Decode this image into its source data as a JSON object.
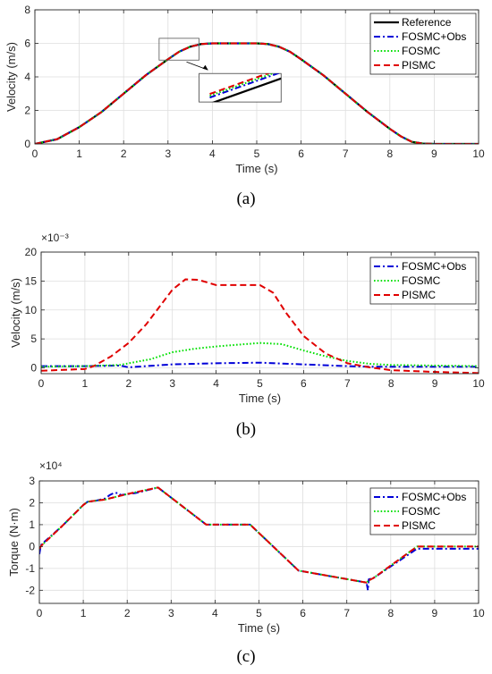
{
  "colors": {
    "reference": "#000000",
    "obs": "#0000d8",
    "fosmc": "#00e000",
    "pismc": "#e00000",
    "grid": "#dedede",
    "axis": "#262626"
  },
  "chart_data": [
    {
      "id": "a",
      "type": "line",
      "caption": "(a)",
      "xlabel": "Time (s)",
      "ylabel": "Velocity (m/s)",
      "xlim": [
        0,
        10
      ],
      "ylim": [
        0,
        8
      ],
      "xticks": [
        "0",
        "1",
        "2",
        "3",
        "4",
        "5",
        "6",
        "7",
        "8",
        "9",
        "10"
      ],
      "yticks": [
        "0",
        "2",
        "4",
        "6",
        "8"
      ],
      "multiplier": "",
      "grid": true,
      "legend_position": "top-right",
      "series": [
        {
          "name": "Reference",
          "style": "solid",
          "color": "#000000",
          "x": [
            0,
            0.5,
            1,
            1.5,
            2,
            2.5,
            3,
            3.25,
            3.5,
            3.75,
            4,
            4.5,
            5,
            5.25,
            5.5,
            5.75,
            6,
            6.5,
            7,
            7.5,
            8,
            8.25,
            8.5,
            8.75,
            9,
            10
          ],
          "y": [
            0,
            0.28,
            1,
            1.9,
            3,
            4.1,
            5.05,
            5.5,
            5.8,
            5.96,
            6,
            6,
            6,
            5.96,
            5.8,
            5.5,
            5.05,
            4.1,
            3,
            1.9,
            0.9,
            0.45,
            0.12,
            0.02,
            0,
            0
          ]
        },
        {
          "name": "FOSMC+Obs",
          "style": "dashdot",
          "color": "#0000d8",
          "x": [
            0,
            0.5,
            1,
            1.5,
            2,
            2.5,
            3,
            3.25,
            3.5,
            3.75,
            4,
            4.5,
            5,
            5.25,
            5.5,
            5.75,
            6,
            6.5,
            7,
            7.5,
            8,
            8.25,
            8.5,
            8.75,
            9,
            10
          ],
          "y": [
            0,
            0.28,
            1,
            1.9,
            3,
            4.1,
            5.05,
            5.5,
            5.8,
            5.96,
            6,
            6,
            6,
            5.96,
            5.8,
            5.5,
            5.05,
            4.1,
            3,
            1.9,
            0.9,
            0.45,
            0.12,
            0.02,
            0,
            0
          ]
        },
        {
          "name": "FOSMC",
          "style": "dotted",
          "color": "#00e000",
          "x": [
            0,
            0.5,
            1,
            1.5,
            2,
            2.5,
            3,
            3.25,
            3.5,
            3.75,
            4,
            4.5,
            5,
            5.25,
            5.5,
            5.75,
            6,
            6.5,
            7,
            7.5,
            8,
            8.25,
            8.5,
            8.75,
            9,
            10
          ],
          "y": [
            0,
            0.28,
            1,
            1.9,
            3,
            4.1,
            5.05,
            5.5,
            5.8,
            5.96,
            6,
            6,
            6,
            5.96,
            5.8,
            5.5,
            5.05,
            4.1,
            3,
            1.9,
            0.9,
            0.45,
            0.12,
            0.02,
            0,
            0
          ]
        },
        {
          "name": "PISMC",
          "style": "dashed",
          "color": "#e00000",
          "x": [
            0,
            0.5,
            1,
            1.5,
            2,
            2.5,
            3,
            3.25,
            3.5,
            3.75,
            4,
            4.5,
            5,
            5.25,
            5.5,
            5.75,
            6,
            6.5,
            7,
            7.5,
            8,
            8.25,
            8.5,
            8.75,
            9,
            10
          ],
          "y": [
            0,
            0.28,
            1,
            1.9,
            3,
            4.1,
            5.05,
            5.5,
            5.8,
            5.96,
            6,
            6,
            6,
            5.96,
            5.8,
            5.5,
            5.05,
            4.1,
            3,
            1.9,
            0.9,
            0.45,
            0.12,
            0.02,
            0,
            0
          ]
        }
      ],
      "inset": {
        "zoom_x": [
          2.8,
          3.7
        ],
        "zoom_y": [
          5.0,
          6.3
        ],
        "inset_x": [
          3.7,
          5.55
        ],
        "inset_y": [
          2.5,
          4.2
        ]
      }
    },
    {
      "id": "b",
      "type": "line",
      "caption": "(b)",
      "xlabel": "Time (s)",
      "ylabel": "Velocity (m/s)",
      "xlim": [
        0,
        10
      ],
      "ylim": [
        -1,
        20
      ],
      "xticks": [
        "0",
        "1",
        "2",
        "3",
        "4",
        "5",
        "6",
        "7",
        "8",
        "9",
        "10"
      ],
      "yticks": [
        "0",
        "5",
        "10",
        "15",
        "20"
      ],
      "multiplier": "×10⁻³",
      "grid": true,
      "legend_position": "top-right",
      "series": [
        {
          "name": "FOSMC+Obs",
          "style": "dashdot",
          "color": "#0000d8",
          "x": [
            0,
            1,
            1.8,
            2,
            3,
            4,
            5,
            6,
            7,
            7.5,
            8,
            9,
            10
          ],
          "y": [
            0.3,
            0.3,
            0.4,
            0.1,
            0.6,
            0.8,
            0.9,
            0.6,
            0.3,
            0.2,
            0.2,
            0.2,
            0.2
          ]
        },
        {
          "name": "FOSMC",
          "style": "dotted",
          "color": "#00e000",
          "x": [
            0,
            1,
            1.8,
            2.5,
            3,
            3.5,
            4,
            4.5,
            5,
            5.5,
            6,
            6.5,
            7,
            7.5,
            8,
            9,
            10
          ],
          "y": [
            0.2,
            0.3,
            0.5,
            1.5,
            2.7,
            3.3,
            3.7,
            4.0,
            4.3,
            4.1,
            3.0,
            2.0,
            1.2,
            0.7,
            0.5,
            0.4,
            0.3
          ]
        },
        {
          "name": "PISMC",
          "style": "dashed",
          "color": "#e00000",
          "x": [
            0,
            1,
            1.2,
            1.6,
            2,
            2.4,
            2.8,
            3,
            3.3,
            3.6,
            4,
            4.5,
            5,
            5.3,
            5.6,
            6,
            6.5,
            7,
            7.5,
            8,
            9,
            10
          ],
          "y": [
            -0.5,
            -0.2,
            0.3,
            2.0,
            4.3,
            7.5,
            11.5,
            13.5,
            15.3,
            15.2,
            14.3,
            14.3,
            14.3,
            13.0,
            9.5,
            5.5,
            2.5,
            0.8,
            0.1,
            -0.4,
            -0.7,
            -0.9
          ]
        }
      ]
    },
    {
      "id": "c",
      "type": "line",
      "caption": "(c)",
      "xlabel": "Time (s)",
      "ylabel": "Torque (N·m)",
      "xlim": [
        0,
        10
      ],
      "ylim": [
        -2.6,
        3
      ],
      "xticks": [
        "0",
        "1",
        "2",
        "3",
        "4",
        "5",
        "6",
        "7",
        "8",
        "9",
        "10"
      ],
      "yticks": [
        "-2",
        "-1",
        "0",
        "1",
        "2",
        "3"
      ],
      "multiplier": "×10⁴",
      "grid": true,
      "legend_position": "top-right",
      "series": [
        {
          "name": "FOSMC+Obs",
          "style": "dashdot",
          "color": "#0000d8",
          "x": [
            0,
            0.02,
            0.05,
            0.5,
            1,
            1.1,
            1.3,
            1.5,
            1.6,
            1.7,
            1.8,
            1.85,
            2.2,
            2.7,
            3.8,
            4.8,
            5.9,
            7.45,
            7.48,
            7.5,
            7.6,
            8.6,
            9,
            9.5,
            10
          ],
          "y": [
            -0.35,
            -0.1,
            0.1,
            0.9,
            1.9,
            2.05,
            2.1,
            2.2,
            2.35,
            2.45,
            2.45,
            2.35,
            2.45,
            2.7,
            1.0,
            1.0,
            -1.1,
            -1.65,
            -2.0,
            -1.5,
            -1.45,
            -0.1,
            -0.1,
            -0.1,
            -0.1
          ]
        },
        {
          "name": "FOSMC",
          "style": "dotted",
          "color": "#00e000",
          "x": [
            0,
            0.05,
            0.5,
            1,
            1.1,
            1.5,
            2,
            2.7,
            3.8,
            4.8,
            5.9,
            7.45,
            7.5,
            7.6,
            8.6,
            9,
            9.5,
            10
          ],
          "y": [
            -0.1,
            0.05,
            0.9,
            1.9,
            2.05,
            2.15,
            2.4,
            2.7,
            1.0,
            1.0,
            -1.1,
            -1.65,
            -1.55,
            -1.45,
            0.0,
            0.0,
            0.0,
            0.0
          ]
        },
        {
          "name": "PISMC",
          "style": "dashed",
          "color": "#e00000",
          "x": [
            0,
            0.05,
            0.5,
            1,
            1.1,
            1.5,
            2,
            2.7,
            3.8,
            4.8,
            5.9,
            7.45,
            7.5,
            7.6,
            8.6,
            9,
            9.5,
            10
          ],
          "y": [
            -0.1,
            0.05,
            0.9,
            1.9,
            2.05,
            2.15,
            2.4,
            2.7,
            1.0,
            1.0,
            -1.1,
            -1.65,
            -1.55,
            -1.45,
            0.0,
            0.0,
            0.0,
            0.0
          ]
        }
      ]
    }
  ]
}
